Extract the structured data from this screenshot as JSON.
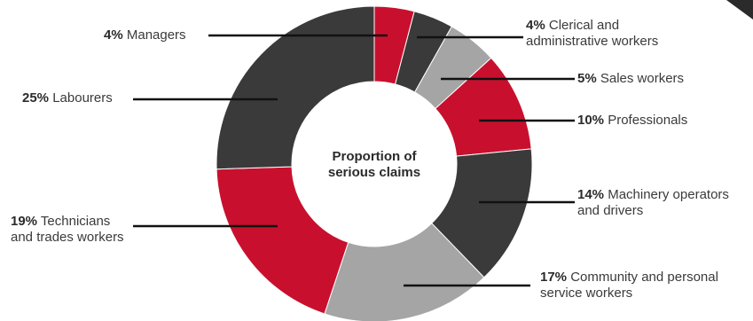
{
  "chart_data": {
    "type": "donut",
    "center_label": [
      "Proportion of",
      "serious claims"
    ],
    "unit": "%",
    "slices": [
      {
        "value": 4,
        "label": "Managers",
        "lines": [
          "Managers"
        ],
        "color": "#c8102e"
      },
      {
        "value": 4,
        "label": "Clerical and administrative workers",
        "lines": [
          "Clerical and",
          "administrative workers"
        ],
        "color": "#3a3a3a"
      },
      {
        "value": 5,
        "label": "Sales workers",
        "lines": [
          "Sales workers"
        ],
        "color": "#a5a5a5"
      },
      {
        "value": 10,
        "label": "Professionals",
        "lines": [
          "Professionals"
        ],
        "color": "#c8102e"
      },
      {
        "value": 14,
        "label": "Machinery operators and drivers",
        "lines": [
          "Machinery operators",
          "and drivers"
        ],
        "color": "#3a3a3a"
      },
      {
        "value": 17,
        "label": "Community and personal service workers",
        "lines": [
          "Community and personal",
          "service workers"
        ],
        "color": "#a5a5a5"
      },
      {
        "value": 19,
        "label": "Technicians and trades workers",
        "lines": [
          "Technicians",
          "and trades workers"
        ],
        "color": "#c8102e"
      },
      {
        "value": 25,
        "label": "Labourers",
        "lines": [
          "Labourers"
        ],
        "color": "#3a3a3a"
      }
    ]
  }
}
